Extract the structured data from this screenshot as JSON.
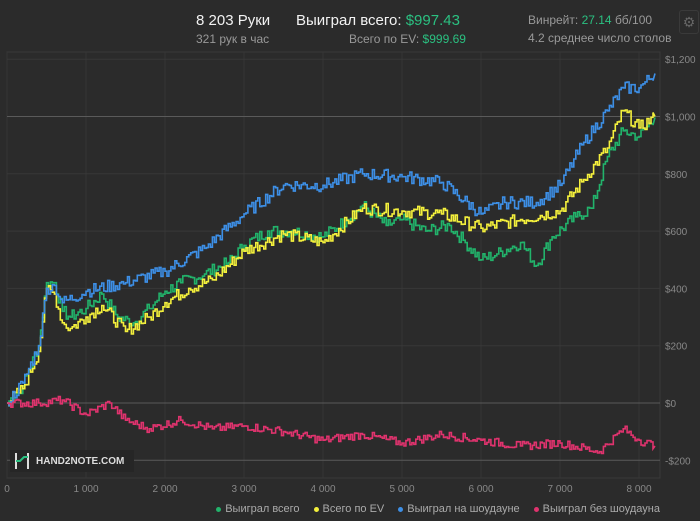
{
  "header": {
    "hands": "8 203 Руки",
    "hands_per_hour": "321 рук в час",
    "won_label": "Выиграл всего:",
    "won_value": "$997.43",
    "ev_label": "Всего по EV:",
    "ev_value": "$999.69",
    "winrate_label": "Винрейт:",
    "winrate_value": "27.14",
    "winrate_unit": "бб/100",
    "tables": "4.2 среднее число столов"
  },
  "logo": {
    "text": "HAND2NOTE.COM"
  },
  "colors": {
    "green": "#22b36b",
    "yellow": "#f4f03c",
    "blue": "#3d8fe6",
    "pink": "#e0336e"
  },
  "chart_data": {
    "type": "line",
    "xlim": [
      0,
      8203
    ],
    "ylim": [
      -260,
      1240
    ],
    "x_ticks": [
      0,
      1000,
      2000,
      3000,
      4000,
      5000,
      6000,
      7000,
      8000
    ],
    "x_tick_labels": [
      "0",
      "1 000",
      "2 000",
      "3 000",
      "4 000",
      "5 000",
      "6 000",
      "7 000",
      "8 000"
    ],
    "y_ticks": [
      -200,
      0,
      200,
      400,
      600,
      800,
      1000,
      1200
    ],
    "y_tick_labels": [
      "-$200",
      "$0",
      "$200",
      "$400",
      "$600",
      "$800",
      "$1,000",
      "$1,200"
    ],
    "legend_position": "bottom-right",
    "series": [
      {
        "name": "Выиграл всего",
        "color": "#22b36b",
        "x": [
          0,
          200,
          400,
          500,
          600,
          700,
          800,
          1000,
          1200,
          1400,
          1600,
          1800,
          2000,
          2200,
          2500,
          2800,
          3000,
          3300,
          3600,
          4000,
          4300,
          4500,
          4800,
          5000,
          5300,
          5600,
          5800,
          6000,
          6200,
          6500,
          6700,
          6900,
          7200,
          7400,
          7600,
          7800,
          8000,
          8203
        ],
        "y": [
          0,
          60,
          200,
          420,
          420,
          320,
          300,
          330,
          380,
          300,
          280,
          330,
          390,
          420,
          450,
          490,
          550,
          600,
          600,
          580,
          640,
          690,
          620,
          640,
          600,
          620,
          560,
          500,
          520,
          560,
          480,
          580,
          650,
          680,
          860,
          950,
          930,
          997
        ]
      },
      {
        "name": "Всего по EV",
        "color": "#f4f03c",
        "x": [
          0,
          200,
          400,
          500,
          600,
          700,
          800,
          1000,
          1200,
          1500,
          1800,
          2000,
          2300,
          2600,
          3000,
          3500,
          4000,
          4500,
          5000,
          5500,
          6000,
          6500,
          7000,
          7300,
          7600,
          7800,
          8000,
          8203
        ],
        "y": [
          0,
          50,
          180,
          400,
          380,
          280,
          260,
          300,
          340,
          250,
          300,
          350,
          400,
          430,
          530,
          590,
          560,
          680,
          670,
          660,
          610,
          640,
          670,
          780,
          890,
          1020,
          960,
          1000
        ]
      },
      {
        "name": "Выиграл на шоудауне",
        "color": "#3d8fe6",
        "x": [
          0,
          200,
          400,
          500,
          600,
          700,
          1000,
          1500,
          2000,
          2500,
          3000,
          3500,
          4000,
          4500,
          5000,
          5500,
          6000,
          6300,
          6700,
          7000,
          7300,
          7600,
          7800,
          8000,
          8203
        ],
        "y": [
          0,
          70,
          200,
          400,
          410,
          350,
          390,
          420,
          460,
          540,
          660,
          760,
          760,
          800,
          790,
          770,
          660,
          700,
          700,
          760,
          910,
          1020,
          1100,
          1100,
          1150
        ]
      },
      {
        "name": "Выиграл без шоудауна",
        "color": "#e0336e",
        "x": [
          0,
          400,
          700,
          1000,
          1300,
          1500,
          1800,
          2200,
          2600,
          3000,
          3500,
          4000,
          4500,
          5000,
          5500,
          6000,
          6500,
          7000,
          7500,
          7800,
          8000,
          8203
        ],
        "y": [
          0,
          0,
          10,
          -40,
          0,
          -60,
          -90,
          -60,
          -90,
          -80,
          -100,
          -130,
          -110,
          -140,
          -110,
          -130,
          -150,
          -140,
          -170,
          -90,
          -130,
          -150
        ]
      }
    ]
  }
}
